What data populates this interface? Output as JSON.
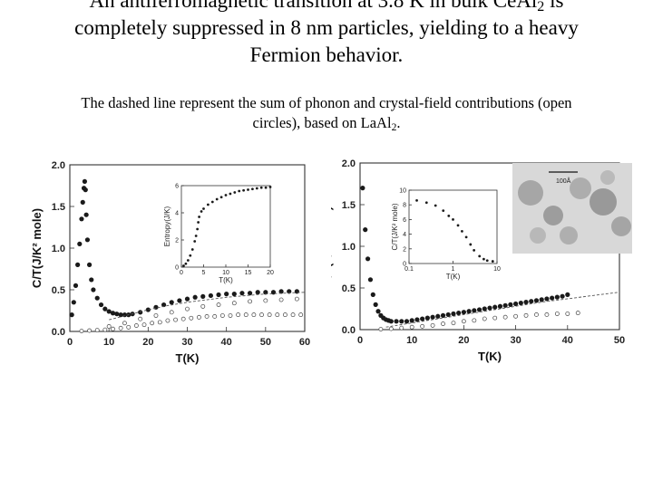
{
  "slide": {
    "title_lines": [
      {
        "pre": "An antiferromagnetic transition at 3.8 K in bulk CeAl",
        "sub": "2",
        "post": " is"
      },
      {
        "text": "completely suppressed in 8 nm particles, yielding to a heavy"
      },
      {
        "text": "Fermion behavior."
      }
    ],
    "note_lines": [
      {
        "text": "The dashed line represent the sum of phonon and crystal-field contributions (open"
      },
      {
        "pre": "circles), based on LaAl",
        "sub": "2",
        "post": "."
      }
    ]
  },
  "chart_data": [
    {
      "type": "scatter",
      "title": "",
      "xlabel": "T(K)",
      "ylabel": "C/T(J/K² mole)",
      "xlim": [
        0,
        60
      ],
      "ylim": [
        0,
        2.0
      ],
      "xticks": [
        0,
        10,
        20,
        30,
        40,
        50,
        60
      ],
      "yticks": [
        0.0,
        0.5,
        1.0,
        1.5,
        2.0
      ],
      "series": [
        {
          "style": "filled",
          "x": [
            0.5,
            1,
            1.5,
            2,
            2.5,
            3,
            3.3,
            3.6,
            3.8,
            4,
            4.2,
            4.5,
            5,
            5.5,
            6,
            7,
            8,
            9,
            10,
            11,
            12,
            13,
            14,
            15,
            16,
            18,
            20,
            22,
            24,
            26,
            28,
            30,
            32,
            34,
            36,
            38,
            40,
            42,
            44,
            46,
            48,
            50,
            52,
            54,
            56,
            58
          ],
          "y": [
            0.2,
            0.35,
            0.55,
            0.8,
            1.05,
            1.35,
            1.55,
            1.72,
            1.8,
            1.7,
            1.4,
            1.1,
            0.8,
            0.62,
            0.5,
            0.4,
            0.32,
            0.27,
            0.24,
            0.22,
            0.21,
            0.2,
            0.2,
            0.2,
            0.21,
            0.23,
            0.26,
            0.29,
            0.32,
            0.35,
            0.37,
            0.39,
            0.41,
            0.42,
            0.43,
            0.44,
            0.45,
            0.45,
            0.46,
            0.46,
            0.47,
            0.47,
            0.47,
            0.48,
            0.48,
            0.48
          ]
        },
        {
          "style": "open",
          "x": [
            3,
            5,
            7,
            9,
            11,
            13,
            15,
            17,
            19,
            21,
            23,
            25,
            27,
            29,
            31,
            33,
            35,
            37,
            39,
            41,
            43,
            45,
            47,
            49,
            51,
            53,
            55,
            57,
            59
          ],
          "y": [
            0.005,
            0.01,
            0.015,
            0.02,
            0.03,
            0.04,
            0.05,
            0.07,
            0.08,
            0.1,
            0.11,
            0.13,
            0.14,
            0.15,
            0.16,
            0.17,
            0.18,
            0.18,
            0.19,
            0.19,
            0.2,
            0.2,
            0.2,
            0.2,
            0.2,
            0.2,
            0.2,
            0.2,
            0.2
          ]
        },
        {
          "style": "open-upper",
          "x": [
            10,
            14,
            18,
            22,
            26,
            30,
            34,
            38,
            42,
            46,
            50,
            54,
            58
          ],
          "y": [
            0.06,
            0.1,
            0.15,
            0.19,
            0.23,
            0.27,
            0.3,
            0.32,
            0.34,
            0.36,
            0.37,
            0.38,
            0.39
          ]
        },
        {
          "style": "dashed",
          "x": [
            10,
            15,
            20,
            25,
            30,
            35,
            40,
            45,
            50,
            55,
            60
          ],
          "y": [
            0.14,
            0.2,
            0.26,
            0.31,
            0.35,
            0.38,
            0.41,
            0.43,
            0.45,
            0.46,
            0.47
          ]
        }
      ],
      "inset": {
        "xlabel": "T(K)",
        "ylabel": "Entropy(J/K)",
        "xlim": [
          0,
          20
        ],
        "ylim": [
          0,
          6
        ],
        "xticks": [
          0,
          5,
          10,
          15,
          20
        ],
        "yticks": [
          0,
          2,
          4,
          6
        ],
        "series": [
          {
            "style": "filled",
            "x": [
              0.5,
              1,
              1.5,
              2,
              2.5,
              3,
              3.3,
              3.6,
              3.8,
              4,
              4.5,
              5,
              6,
              7,
              8,
              9,
              10,
              11,
              12,
              13,
              14,
              15,
              16,
              17,
              18,
              19,
              20
            ],
            "y": [
              0.1,
              0.25,
              0.5,
              0.85,
              1.3,
              1.9,
              2.3,
              2.8,
              3.3,
              3.7,
              4.1,
              4.3,
              4.6,
              4.8,
              5.0,
              5.15,
              5.3,
              5.4,
              5.5,
              5.6,
              5.65,
              5.7,
              5.75,
              5.8,
              5.85,
              5.85,
              5.9
            ]
          }
        ]
      }
    },
    {
      "type": "scatter",
      "title": "",
      "xlabel": "T(K)",
      "ylabel": "C/T(J/K² mole)",
      "xlim": [
        0,
        50
      ],
      "ylim": [
        0,
        2.0
      ],
      "xticks": [
        0,
        10,
        20,
        30,
        40,
        50
      ],
      "yticks": [
        0.0,
        0.5,
        1.0,
        1.5,
        2.0
      ],
      "series": [
        {
          "style": "filled",
          "x": [
            0.5,
            1,
            1.5,
            2,
            2.5,
            3,
            3.5,
            4,
            4.5,
            5,
            5.5,
            6,
            7,
            8,
            9,
            10,
            11,
            12,
            13,
            14,
            15,
            16,
            17,
            18,
            19,
            20,
            21,
            22,
            23,
            24,
            25,
            26,
            27,
            28,
            29,
            30,
            31,
            32,
            33,
            34,
            35,
            36,
            37,
            38,
            39,
            40
          ],
          "y": [
            1.7,
            1.2,
            0.85,
            0.6,
            0.42,
            0.3,
            0.22,
            0.17,
            0.14,
            0.12,
            0.11,
            0.1,
            0.1,
            0.1,
            0.1,
            0.11,
            0.12,
            0.13,
            0.14,
            0.15,
            0.16,
            0.17,
            0.18,
            0.19,
            0.2,
            0.21,
            0.22,
            0.23,
            0.24,
            0.25,
            0.26,
            0.27,
            0.28,
            0.29,
            0.3,
            0.31,
            0.32,
            0.33,
            0.34,
            0.35,
            0.36,
            0.37,
            0.38,
            0.39,
            0.4,
            0.42
          ]
        },
        {
          "style": "open",
          "x": [
            4,
            6,
            8,
            10,
            12,
            14,
            16,
            18,
            20,
            22,
            24,
            26,
            28,
            30,
            32,
            34,
            36,
            38,
            40,
            42
          ],
          "y": [
            0.005,
            0.01,
            0.02,
            0.03,
            0.04,
            0.05,
            0.07,
            0.08,
            0.1,
            0.11,
            0.13,
            0.14,
            0.15,
            0.16,
            0.17,
            0.18,
            0.18,
            0.19,
            0.19,
            0.2
          ]
        },
        {
          "style": "dashed",
          "x": [
            5,
            10,
            15,
            20,
            25,
            30,
            35,
            40,
            45,
            50
          ],
          "y": [
            0.03,
            0.08,
            0.13,
            0.18,
            0.23,
            0.28,
            0.33,
            0.37,
            0.41,
            0.45
          ]
        }
      ],
      "inset": {
        "xlabel": "T(K)",
        "ylabel": "C/T(J/K² mole)",
        "xlim": [
          0.1,
          10
        ],
        "ylim": [
          0,
          10
        ],
        "xscale": "log",
        "xticks": [
          0.1,
          1,
          10
        ],
        "yticks": [
          0,
          2,
          4,
          6,
          8,
          10
        ],
        "series": [
          {
            "style": "filled",
            "x": [
              0.15,
              0.25,
              0.4,
              0.6,
              0.8,
              1,
              1.3,
              1.6,
              2,
              2.5,
              3,
              4,
              5,
              6,
              8
            ],
            "y": [
              8.6,
              8.3,
              7.9,
              7.2,
              6.5,
              6.0,
              5.2,
              4.4,
              3.6,
              2.6,
              1.8,
              1.0,
              0.6,
              0.4,
              0.3
            ]
          }
        ]
      },
      "micrograph": {
        "scale_label": "100Å"
      }
    }
  ]
}
